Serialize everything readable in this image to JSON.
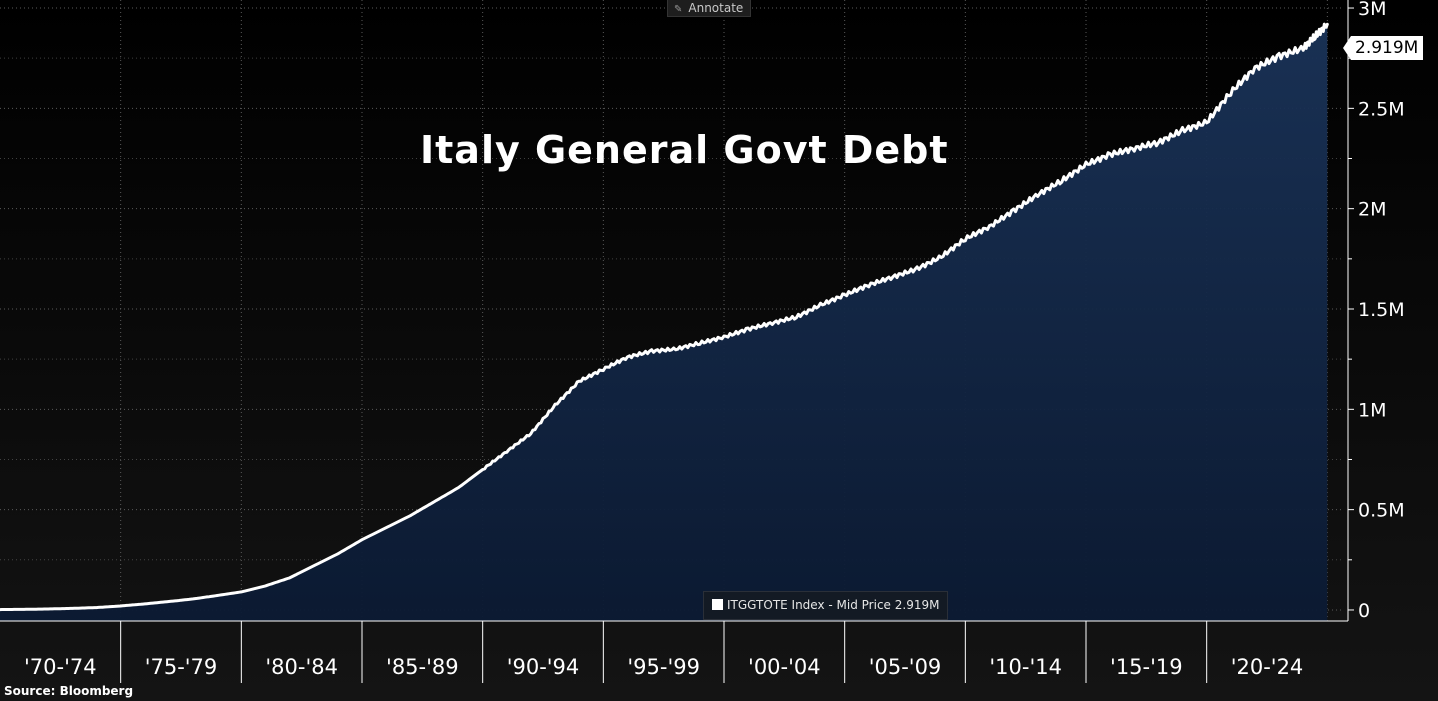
{
  "toolbar": {
    "annotate_label": "Annotate",
    "annotate_icon": "pencil-icon"
  },
  "footer": {
    "source": "Source: Bloomberg"
  },
  "colors": {
    "line": "#ffffff",
    "area_top": "#1a3358",
    "area_bottom": "#0b1a33",
    "grid": "#5a5a5a",
    "axis_text": "#ffffff",
    "background": "#000000"
  },
  "chart_data": {
    "type": "area",
    "title": "Italy General Govt Debt",
    "xlabel": "",
    "ylabel": "",
    "legend": {
      "label": "ITGGTOTE Index - Mid Price 2.919M",
      "placement": "bottom-center"
    },
    "last_value_label": "2.919M",
    "y_ticks": [
      {
        "value": 0,
        "label": "0"
      },
      {
        "value": 500000,
        "label": "0.5M"
      },
      {
        "value": 1000000,
        "label": "1M"
      },
      {
        "value": 1500000,
        "label": "1.5M"
      },
      {
        "value": 2000000,
        "label": "2M"
      },
      {
        "value": 2500000,
        "label": "2.5M"
      },
      {
        "value": 3000000,
        "label": "3M"
      }
    ],
    "ylim": [
      -55000,
      3040000
    ],
    "xlim": [
      1970.0,
      2025.4
    ],
    "x_categories": [
      "'70-'74",
      "'75-'79",
      "'80-'84",
      "'85-'89",
      "'90-'94",
      "'95-'99",
      "'00-'04",
      "'05-'09",
      "'10-'14",
      "'15-'19",
      "'20-'24"
    ],
    "grid": true,
    "series": [
      {
        "name": "ITGGTOTE Index",
        "x": [
          1970.0,
          1971,
          1972,
          1973,
          1974,
          1975,
          1976,
          1977,
          1978,
          1979,
          1980,
          1981,
          1982,
          1983,
          1984,
          1985,
          1986,
          1987,
          1988,
          1989,
          1990,
          1991,
          1992,
          1993,
          1994,
          1995,
          1996,
          1997,
          1998,
          1999,
          2000,
          2001,
          2002,
          2003,
          2004,
          2005,
          2006,
          2007,
          2008,
          2009,
          2010,
          2011,
          2012,
          2013,
          2014,
          2015,
          2016,
          2017,
          2018,
          2019,
          2020,
          2021,
          2022,
          2023,
          2024,
          2024.5,
          2025.0
        ],
        "values": [
          2000,
          3000,
          5000,
          8000,
          12000,
          20000,
          30000,
          42000,
          55000,
          72000,
          90000,
          120000,
          160000,
          220000,
          280000,
          350000,
          410000,
          470000,
          540000,
          610000,
          700000,
          790000,
          880000,
          1020000,
          1140000,
          1200000,
          1260000,
          1290000,
          1300000,
          1330000,
          1360000,
          1400000,
          1430000,
          1460000,
          1520000,
          1570000,
          1620000,
          1660000,
          1700000,
          1760000,
          1850000,
          1910000,
          1990000,
          2070000,
          2140000,
          2220000,
          2270000,
          2300000,
          2330000,
          2390000,
          2430000,
          2580000,
          2700000,
          2760000,
          2800000,
          2860000,
          2919000
        ]
      }
    ]
  }
}
